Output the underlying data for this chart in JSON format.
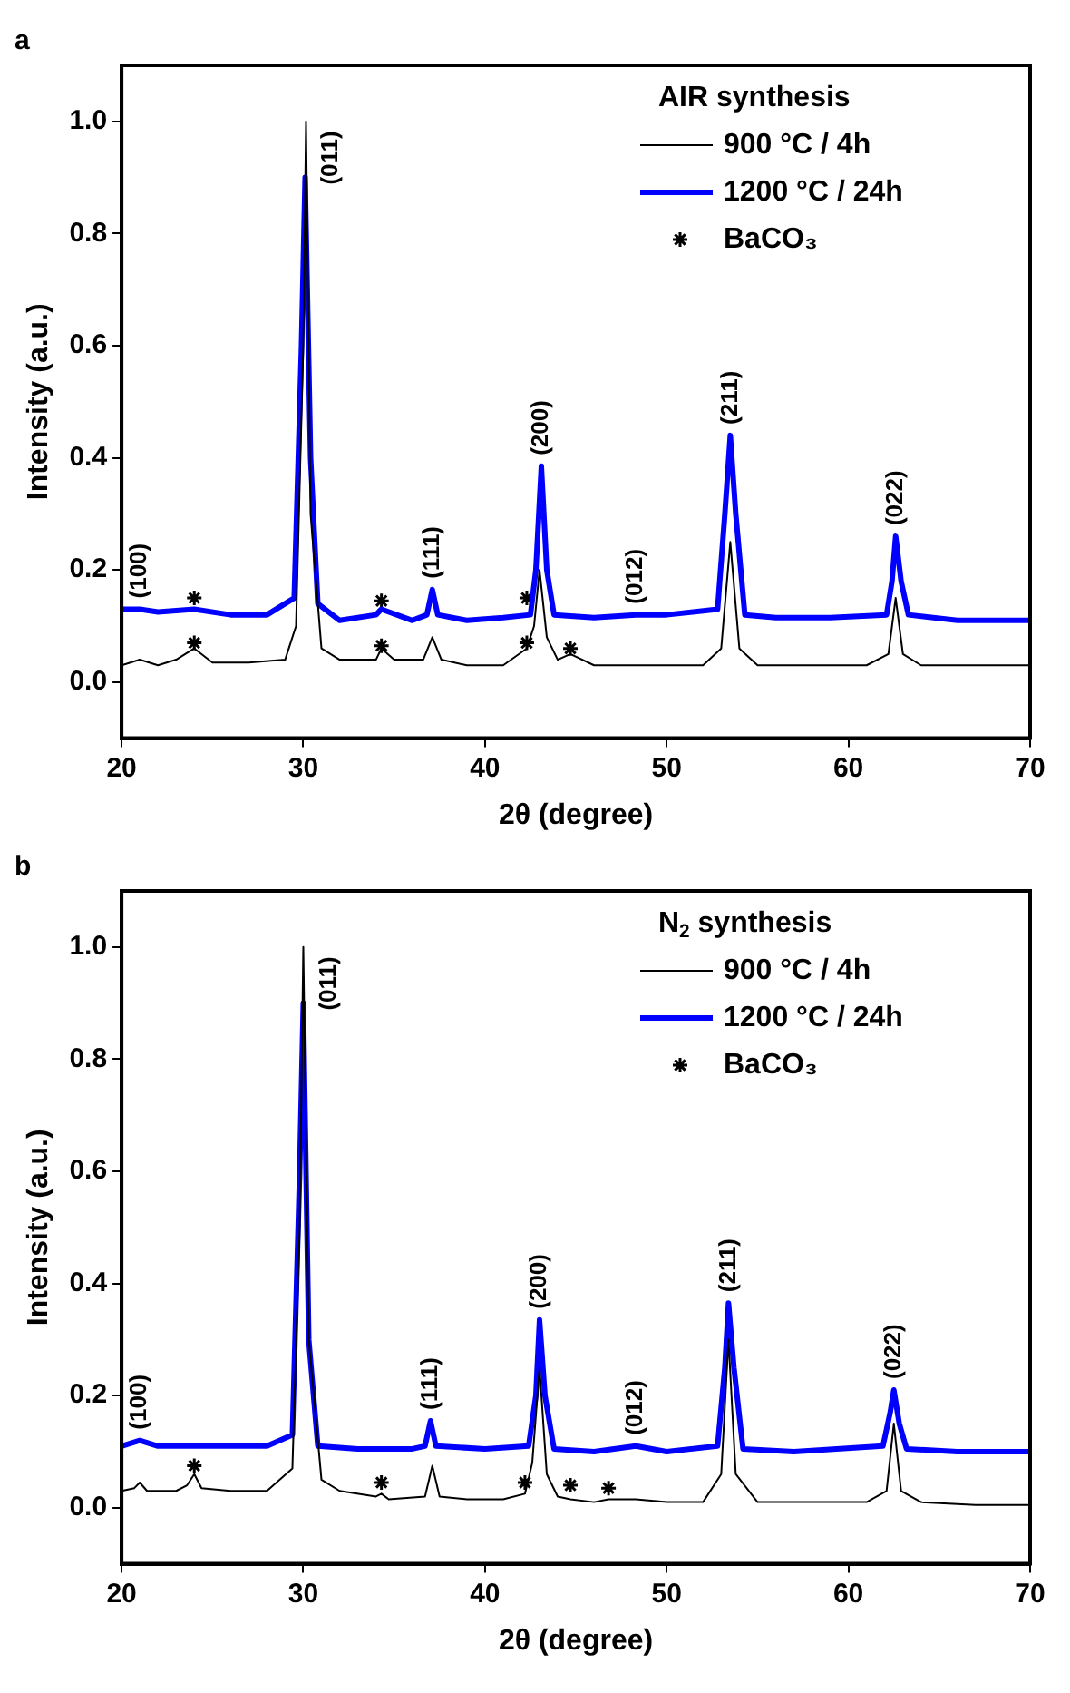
{
  "chart_data": [
    {
      "type": "line",
      "title": "a",
      "xlabel": "2θ (degree)",
      "ylabel": "Intensity (a.u.)",
      "legend_title": "AIR synthesis",
      "legend": "top right",
      "grid": false,
      "xlim": [
        20,
        70
      ],
      "xticks": [
        20,
        30,
        40,
        50,
        60,
        70
      ],
      "ylim": [
        -0.1,
        1.1
      ],
      "yticks": [
        {
          "value": 0,
          "label": "0.0"
        },
        {
          "value": 0.2,
          "label": "0.2"
        },
        {
          "value": 0.4,
          "label": "0.4"
        },
        {
          "value": 0.6,
          "label": "0.6"
        },
        {
          "value": 0.8,
          "label": "0.8"
        },
        {
          "value": 1,
          "label": "1.0"
        }
      ],
      "series": [
        {
          "name": "900 °C / 4h",
          "type": "line",
          "color": "#000000",
          "x": [
            20,
            21,
            22,
            23,
            24,
            25,
            27,
            29,
            29.6,
            30.0,
            30.15,
            30.4,
            31,
            32,
            34,
            34.3,
            35,
            36.6,
            37.1,
            37.6,
            39,
            41,
            42.3,
            42.7,
            43.0,
            43.4,
            44,
            44.7,
            46,
            48,
            50,
            52,
            53.0,
            53.5,
            54.0,
            55,
            58,
            61,
            62.2,
            62.6,
            63.0,
            64,
            67,
            70
          ],
          "values": [
            0.03,
            0.04,
            0.03,
            0.04,
            0.06,
            0.035,
            0.035,
            0.04,
            0.1,
            0.6,
            1.0,
            0.3,
            0.06,
            0.04,
            0.04,
            0.06,
            0.04,
            0.04,
            0.08,
            0.04,
            0.03,
            0.03,
            0.06,
            0.1,
            0.2,
            0.08,
            0.04,
            0.05,
            0.03,
            0.03,
            0.03,
            0.03,
            0.06,
            0.25,
            0.06,
            0.03,
            0.03,
            0.03,
            0.05,
            0.15,
            0.05,
            0.03,
            0.03,
            0.03
          ]
        },
        {
          "name": "1200 °C / 24h",
          "type": "line",
          "color": "#0000ff",
          "x": [
            20,
            21,
            22,
            24,
            26,
            28,
            29.5,
            29.9,
            30.1,
            30.4,
            30.8,
            32,
            34,
            34.3,
            36,
            36.8,
            37.1,
            37.4,
            39,
            41,
            42.5,
            42.8,
            43.1,
            43.4,
            43.8,
            46,
            48.3,
            50,
            52.8,
            53.2,
            53.5,
            53.8,
            54.3,
            56,
            59,
            62.1,
            62.4,
            62.6,
            62.9,
            63.3,
            66,
            70
          ],
          "values": [
            0.13,
            0.13,
            0.125,
            0.13,
            0.12,
            0.12,
            0.15,
            0.6,
            0.9,
            0.4,
            0.14,
            0.11,
            0.12,
            0.13,
            0.11,
            0.12,
            0.165,
            0.12,
            0.11,
            0.115,
            0.12,
            0.2,
            0.385,
            0.2,
            0.12,
            0.115,
            0.12,
            0.12,
            0.13,
            0.3,
            0.44,
            0.3,
            0.12,
            0.115,
            0.115,
            0.12,
            0.18,
            0.26,
            0.18,
            0.12,
            0.11,
            0.11
          ]
        },
        {
          "name": "BaCO₃",
          "type": "scatter",
          "marker": "cross",
          "color": "#000000",
          "x": [
            24.0,
            34.3,
            42.3,
            24.0,
            34.3,
            42.3,
            44.7
          ],
          "values": [
            0.15,
            0.145,
            0.15,
            0.07,
            0.065,
            0.07,
            0.06
          ]
        }
      ],
      "annotations": [
        {
          "text": "(100)",
          "x": 21,
          "y": 0.13
        },
        {
          "text": "(011)",
          "x": 30.1,
          "y": 0.9
        },
        {
          "text": "(111)",
          "x": 37.1,
          "y": 0.165
        },
        {
          "text": "(200)",
          "x": 43.1,
          "y": 0.385
        },
        {
          "text": "(012)",
          "x": 48.3,
          "y": 0.12
        },
        {
          "text": "(211)",
          "x": 53.5,
          "y": 0.44
        },
        {
          "text": "(022)",
          "x": 62.6,
          "y": 0.26
        }
      ]
    },
    {
      "type": "line",
      "title": "b",
      "xlabel": "2θ (degree)",
      "ylabel": "Intensity (a.u.)",
      "legend_title": "N$_{2}$ synthesis",
      "legend": "top right",
      "grid": false,
      "xlim": [
        20,
        70
      ],
      "xticks": [
        20,
        30,
        40,
        50,
        60,
        70
      ],
      "ylim": [
        -0.1,
        1.1
      ],
      "yticks": [
        {
          "value": 0,
          "label": "0.0"
        },
        {
          "value": 0.2,
          "label": "0.2"
        },
        {
          "value": 0.4,
          "label": "0.4"
        },
        {
          "value": 0.6,
          "label": "0.6"
        },
        {
          "value": 0.8,
          "label": "0.8"
        },
        {
          "value": 1,
          "label": "1.0"
        }
      ],
      "series": [
        {
          "name": "900 °C / 4h",
          "type": "line",
          "color": "#000000",
          "x": [
            20,
            20.7,
            21.0,
            21.4,
            23,
            23.6,
            24.0,
            24.4,
            26,
            28,
            29.4,
            29.8,
            30.0,
            30.3,
            31,
            32,
            34,
            34.3,
            34.7,
            36.7,
            37.1,
            37.5,
            39,
            41,
            42.2,
            42.6,
            43.0,
            43.4,
            44,
            44.7,
            46,
            46.8,
            48.3,
            50,
            52,
            53.0,
            53.4,
            53.8,
            55,
            58,
            61,
            62.1,
            62.5,
            62.9,
            64,
            67,
            70
          ],
          "values": [
            0.03,
            0.035,
            0.045,
            0.03,
            0.03,
            0.04,
            0.06,
            0.035,
            0.03,
            0.03,
            0.07,
            0.5,
            1.0,
            0.3,
            0.05,
            0.03,
            0.02,
            0.025,
            0.015,
            0.02,
            0.075,
            0.02,
            0.015,
            0.015,
            0.025,
            0.08,
            0.25,
            0.06,
            0.02,
            0.015,
            0.01,
            0.015,
            0.015,
            0.01,
            0.01,
            0.06,
            0.3,
            0.06,
            0.01,
            0.01,
            0.01,
            0.03,
            0.15,
            0.03,
            0.01,
            0.005,
            0.005
          ]
        },
        {
          "name": "1200 °C / 24h",
          "type": "line",
          "color": "#0000ff",
          "x": [
            20,
            21.0,
            22,
            25,
            28,
            29.4,
            29.8,
            30.0,
            30.3,
            30.8,
            33,
            36,
            36.7,
            37.0,
            37.3,
            40,
            42.4,
            42.8,
            43.0,
            43.3,
            43.8,
            46,
            48.3,
            50,
            52.8,
            53.2,
            53.4,
            53.7,
            54.2,
            57,
            61.9,
            62.3,
            62.5,
            62.8,
            63.2,
            66,
            70
          ],
          "values": [
            0.11,
            0.12,
            0.11,
            0.11,
            0.11,
            0.13,
            0.6,
            0.9,
            0.3,
            0.11,
            0.105,
            0.105,
            0.11,
            0.155,
            0.11,
            0.105,
            0.11,
            0.2,
            0.335,
            0.2,
            0.105,
            0.1,
            0.11,
            0.1,
            0.11,
            0.25,
            0.365,
            0.25,
            0.105,
            0.1,
            0.11,
            0.17,
            0.21,
            0.15,
            0.105,
            0.1,
            0.1
          ]
        },
        {
          "name": "BaCO₃",
          "type": "scatter",
          "marker": "cross",
          "color": "#000000",
          "x": [
            24.0,
            34.3,
            42.2,
            44.7,
            46.8
          ],
          "values": [
            0.075,
            0.045,
            0.045,
            0.04,
            0.035
          ]
        }
      ],
      "annotations": [
        {
          "text": "(100)",
          "x": 21.0,
          "y": 0.12
        },
        {
          "text": "(011)",
          "x": 30.0,
          "y": 0.9
        },
        {
          "text": "(111)",
          "x": 37.0,
          "y": 0.155
        },
        {
          "text": "(200)",
          "x": 43.0,
          "y": 0.335
        },
        {
          "text": "(012)",
          "x": 48.3,
          "y": 0.11
        },
        {
          "text": "(211)",
          "x": 53.4,
          "y": 0.365
        },
        {
          "text": "(022)",
          "x": 62.5,
          "y": 0.21
        }
      ]
    }
  ]
}
